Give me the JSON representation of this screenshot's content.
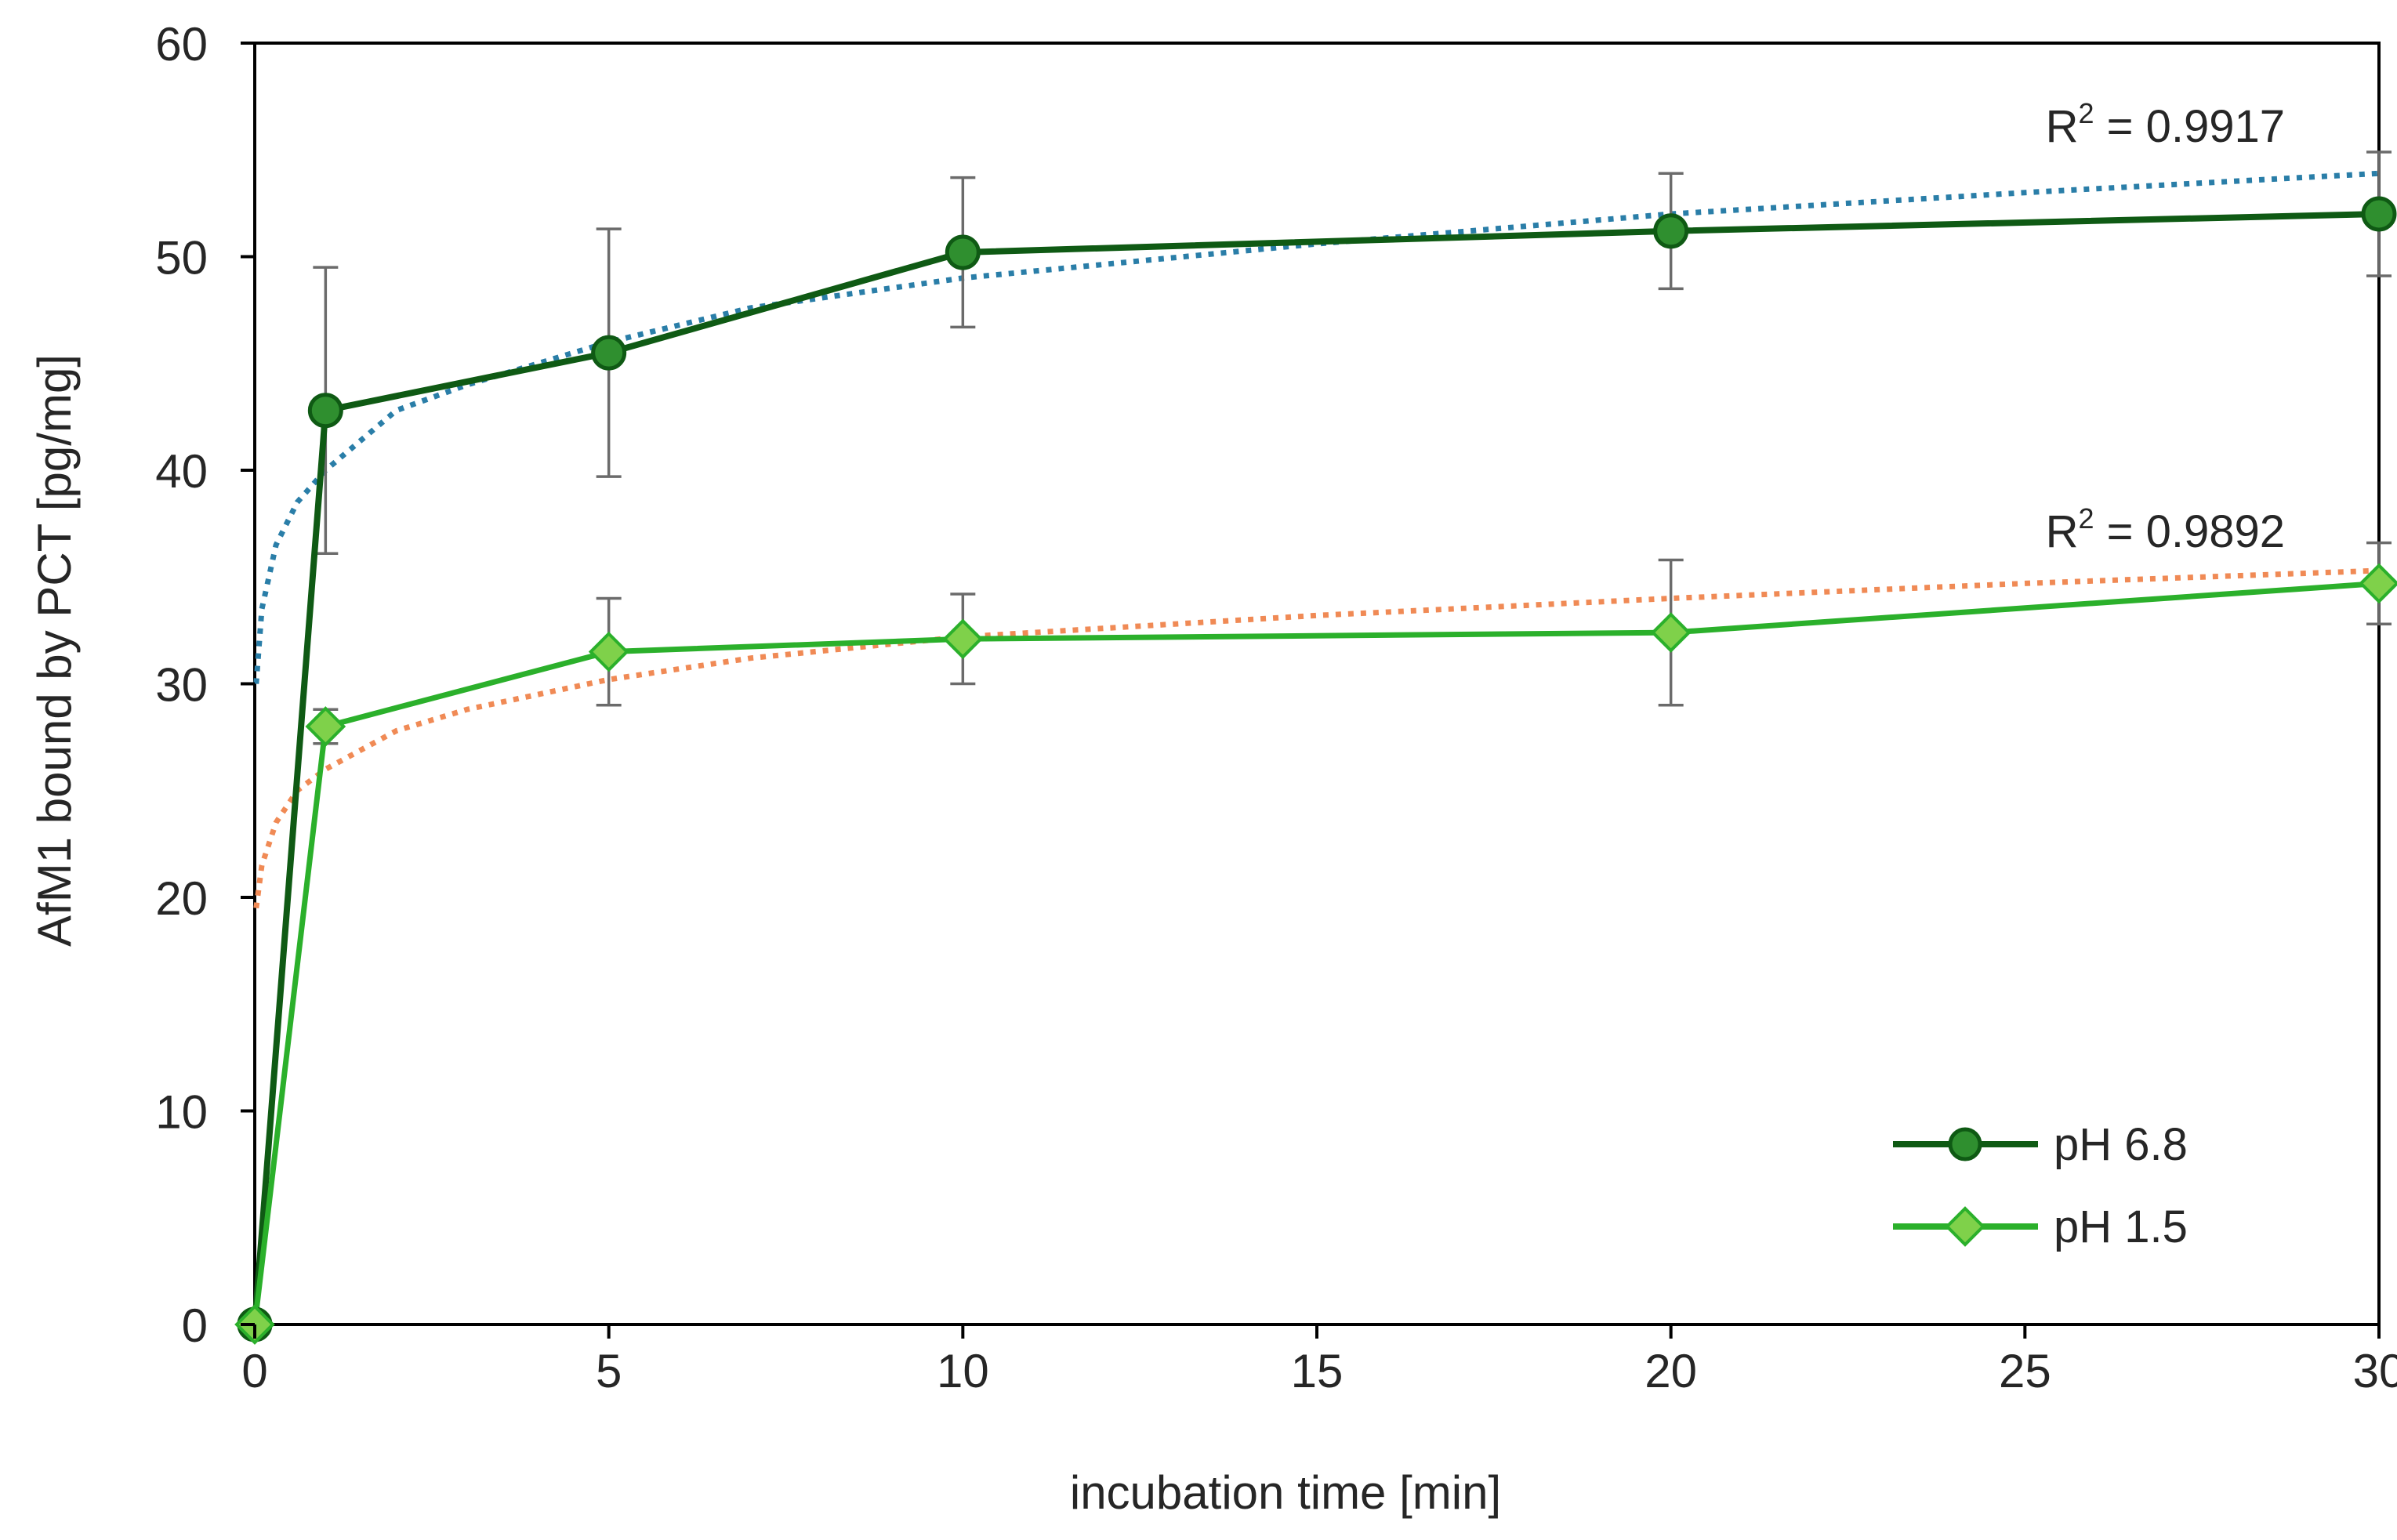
{
  "chart_data": {
    "type": "line",
    "title": "",
    "xlabel": "incubation time [min]",
    "ylabel": "AfM1 bound by PCT [pg/mg]",
    "xlim": [
      0,
      30
    ],
    "ylim": [
      0,
      60
    ],
    "xticks": [
      0,
      5,
      10,
      15,
      20,
      25,
      30
    ],
    "yticks": [
      0,
      10,
      20,
      30,
      40,
      50,
      60
    ],
    "grid": false,
    "legend_position": "bottom-right",
    "series": [
      {
        "name": "pH 6.8",
        "marker": "circle",
        "color": "#0f5a14",
        "marker_fill": "#2f8f2f",
        "x": [
          0,
          1,
          5,
          10,
          20,
          30
        ],
        "y": [
          0,
          42.8,
          45.5,
          50.2,
          51.2,
          52.0
        ],
        "error": [
          0,
          6.7,
          5.8,
          3.5,
          2.7,
          2.9
        ],
        "trendline": {
          "style": "dotted",
          "color": "#2a7ea8",
          "kind": "logarithmic",
          "r2_prefix": "R",
          "r2_power": "2",
          "r2_value": " = 0.9917",
          "points": [
            [
              0.02,
              30.0
            ],
            [
              0.1,
              33.5
            ],
            [
              0.3,
              36.5
            ],
            [
              0.6,
              38.5
            ],
            [
              1,
              40.0
            ],
            [
              2,
              42.8
            ],
            [
              3,
              44.0
            ],
            [
              5,
              46.0
            ],
            [
              7,
              47.6
            ],
            [
              10,
              49.0
            ],
            [
              15,
              50.6
            ],
            [
              20,
              52.0
            ],
            [
              25,
              53.0
            ],
            [
              30,
              53.9
            ]
          ]
        }
      },
      {
        "name": "pH 1.5",
        "marker": "diamond",
        "color": "#2bb02b",
        "marker_fill": "#7fd14a",
        "x": [
          0,
          1,
          5,
          10,
          20,
          30
        ],
        "y": [
          0,
          28.0,
          31.5,
          32.1,
          32.4,
          34.7
        ],
        "error": [
          0,
          0.8,
          2.5,
          2.1,
          3.4,
          1.9
        ],
        "trendline": {
          "style": "dotted",
          "color": "#f08a55",
          "kind": "logarithmic",
          "r2_prefix": "R",
          "r2_power": "2",
          "r2_value": " = 0.9892",
          "points": [
            [
              0.02,
              19.5
            ],
            [
              0.1,
              21.5
            ],
            [
              0.3,
              23.5
            ],
            [
              0.6,
              25.0
            ],
            [
              1,
              26.0
            ],
            [
              2,
              27.8
            ],
            [
              3,
              28.8
            ],
            [
              5,
              30.2
            ],
            [
              7,
              31.2
            ],
            [
              10,
              32.2
            ],
            [
              15,
              33.2
            ],
            [
              20,
              34.0
            ],
            [
              25,
              34.7
            ],
            [
              30,
              35.3
            ]
          ]
        }
      }
    ]
  }
}
